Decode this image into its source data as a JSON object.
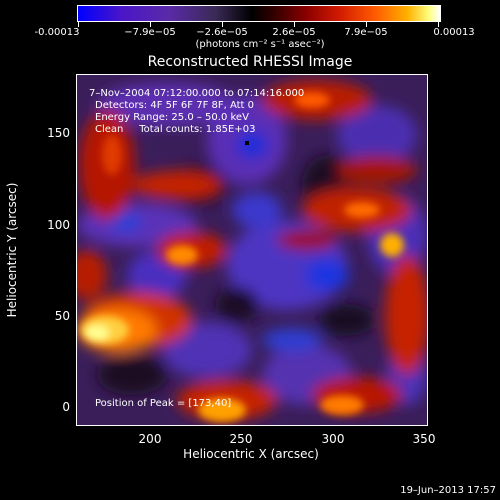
{
  "colorbar": {
    "labels": [
      "-0.00013",
      "−7.9e−05",
      "−2.6e−05",
      "2.6e−05",
      "7.9e−05",
      "0.00013"
    ],
    "units": "(photons cm⁻² s⁻¹ asec⁻²)"
  },
  "title": "Reconstructed RHESSI Image",
  "annotations": {
    "time": "7–Nov–2004 07:12:00.000 to 07:14:16.000",
    "detectors": "Detectors: 4F 5F 6F 7F 8F, Att 0",
    "energy": "Energy Range: 25.0 – 50.0 keV",
    "clean": "Clean     Total counts: 1.85E+03",
    "peak": "Position of Peak = [173,40]"
  },
  "axes": {
    "xlabel": "Heliocentric X (arcsec)",
    "ylabel": "Heliocentric Y (arcsec)",
    "xticks": [
      "200",
      "250",
      "300",
      "350"
    ],
    "yticks": [
      "0",
      "50",
      "100",
      "150"
    ]
  },
  "timestamp": "19–Jun–2013 17:57",
  "chart_data": {
    "type": "heatmap",
    "title": "Reconstructed RHESSI Image",
    "xlabel": "Heliocentric X (arcsec)",
    "ylabel": "Heliocentric Y (arcsec)",
    "xlim": [
      160,
      350
    ],
    "ylim": [
      -5,
      182
    ],
    "colorbar_range": [
      -0.00013,
      0.00013
    ],
    "colormap": "blue-purple-black-red-yellow-white",
    "peak_position": [
      173,
      40
    ]
  }
}
